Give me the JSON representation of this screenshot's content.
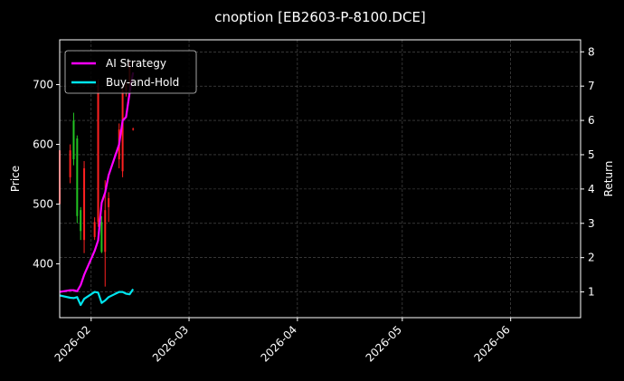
{
  "chart_data": {
    "type": "line",
    "title": "cnoption [EB2603-P-8100.DCE]",
    "xlabel": "",
    "ylabel": "Price",
    "y2label": "Return",
    "background": "#000000",
    "grid": true,
    "legend_position": "top-left",
    "x_range": [
      "2026-01-23",
      "2026-06-21"
    ],
    "x_ticks": [
      "2026-02",
      "2026-03",
      "2026-04",
      "2026-05",
      "2026-06"
    ],
    "y_range": [
      310,
      775
    ],
    "y_ticks": [
      400,
      500,
      600,
      700
    ],
    "y2_range": [
      0.25,
      8.35
    ],
    "y2_ticks": [
      1,
      2,
      3,
      4,
      5,
      6,
      7,
      8
    ],
    "candles": {
      "up_color": "#ff2020",
      "down_color": "#22c322",
      "items": [
        {
          "date": "2026-01-23",
          "open": 500,
          "close": 590,
          "high": 598,
          "low": 493
        },
        {
          "date": "2026-01-26",
          "open": 545,
          "close": 590,
          "high": 600,
          "low": 535
        },
        {
          "date": "2026-01-27",
          "open": 640,
          "close": 575,
          "high": 653,
          "low": 565
        },
        {
          "date": "2026-01-28",
          "open": 610,
          "close": 480,
          "high": 615,
          "low": 468
        },
        {
          "date": "2026-01-29",
          "open": 490,
          "close": 455,
          "high": 495,
          "low": 440
        },
        {
          "date": "2026-01-30",
          "open": 440,
          "close": 560,
          "high": 572,
          "low": 418
        },
        {
          "date": "2026-02-02",
          "open": 445,
          "close": 470,
          "high": 478,
          "low": 440
        },
        {
          "date": "2026-02-03",
          "open": 470,
          "close": 700,
          "high": 708,
          "low": 462
        },
        {
          "date": "2026-02-04",
          "open": 470,
          "close": 420,
          "high": 480,
          "low": 418
        },
        {
          "date": "2026-02-05",
          "open": 420,
          "close": 490,
          "high": 540,
          "low": 362
        },
        {
          "date": "2026-02-06",
          "open": 495,
          "close": 510,
          "high": 520,
          "low": 470
        },
        {
          "date": "2026-02-09",
          "open": 575,
          "close": 625,
          "high": 635,
          "low": 560
        },
        {
          "date": "2026-02-10",
          "open": 555,
          "close": 690,
          "high": 700,
          "low": 545
        },
        {
          "date": "2026-02-11",
          "open": 690,
          "close": 700,
          "high": 705,
          "low": 680
        },
        {
          "date": "2026-02-12",
          "open": 700,
          "close": 735,
          "high": 740,
          "low": 695
        },
        {
          "date": "2026-02-13",
          "open": 625,
          "close": 626,
          "high": 628,
          "low": 623
        }
      ]
    },
    "series": [
      {
        "name": "AI Strategy",
        "color": "#ff00ff",
        "axis": "right",
        "points": [
          [
            "2026-01-23",
            1.0
          ],
          [
            "2026-01-26",
            1.05
          ],
          [
            "2026-01-27",
            1.05
          ],
          [
            "2026-01-28",
            1.02
          ],
          [
            "2026-01-29",
            1.2
          ],
          [
            "2026-01-30",
            1.5
          ],
          [
            "2026-02-02",
            2.2
          ],
          [
            "2026-02-03",
            2.5
          ],
          [
            "2026-02-04",
            3.6
          ],
          [
            "2026-02-05",
            3.9
          ],
          [
            "2026-02-06",
            4.4
          ],
          [
            "2026-02-09",
            5.3
          ],
          [
            "2026-02-10",
            6.0
          ],
          [
            "2026-02-11",
            6.1
          ],
          [
            "2026-02-12",
            6.8
          ],
          [
            "2026-02-13",
            7.4
          ]
        ]
      },
      {
        "name": "Buy-and-Hold",
        "color": "#00e5ee",
        "axis": "right",
        "points": [
          [
            "2026-01-23",
            0.9
          ],
          [
            "2026-01-26",
            0.83
          ],
          [
            "2026-01-27",
            0.82
          ],
          [
            "2026-01-28",
            0.85
          ],
          [
            "2026-01-29",
            0.62
          ],
          [
            "2026-01-30",
            0.8
          ],
          [
            "2026-02-02",
            1.0
          ],
          [
            "2026-02-03",
            0.98
          ],
          [
            "2026-02-04",
            0.68
          ],
          [
            "2026-02-05",
            0.75
          ],
          [
            "2026-02-06",
            0.85
          ],
          [
            "2026-02-09",
            1.0
          ],
          [
            "2026-02-10",
            1.0
          ],
          [
            "2026-02-11",
            0.95
          ],
          [
            "2026-02-12",
            0.93
          ],
          [
            "2026-02-13",
            1.08
          ]
        ]
      }
    ]
  }
}
